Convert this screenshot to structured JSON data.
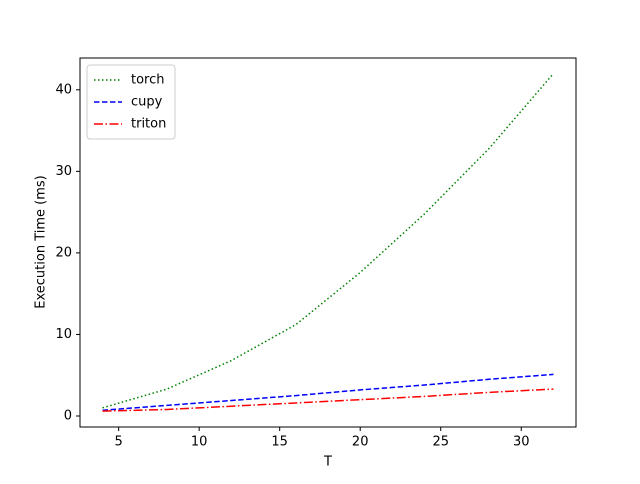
{
  "chart_data": {
    "type": "line",
    "x_label": "T",
    "y_label": "Execution Time (ms)",
    "x": [
      4,
      8,
      12,
      16,
      20,
      24,
      28,
      32
    ],
    "series": [
      {
        "name": "torch",
        "color": "#008000",
        "linestyle": "dotted",
        "values": [
          1.0,
          3.3,
          6.8,
          11.2,
          17.6,
          24.8,
          32.8,
          42.0
        ]
      },
      {
        "name": "cupy",
        "color": "#0000ff",
        "linestyle": "dashed",
        "values": [
          0.7,
          1.3,
          1.9,
          2.5,
          3.2,
          3.8,
          4.5,
          5.1
        ]
      },
      {
        "name": "triton",
        "color": "#ff0000",
        "linestyle": "dashdot",
        "values": [
          0.6,
          0.8,
          1.2,
          1.6,
          2.0,
          2.4,
          2.9,
          3.3
        ]
      }
    ],
    "xlim": [
      2.6,
      33.4
    ],
    "xticks": [
      5,
      10,
      15,
      20,
      25,
      30
    ],
    "ylim": [
      -1.35,
      43.9
    ],
    "yticks": [
      0,
      10,
      20,
      30,
      40
    ],
    "legend": "upper left"
  }
}
